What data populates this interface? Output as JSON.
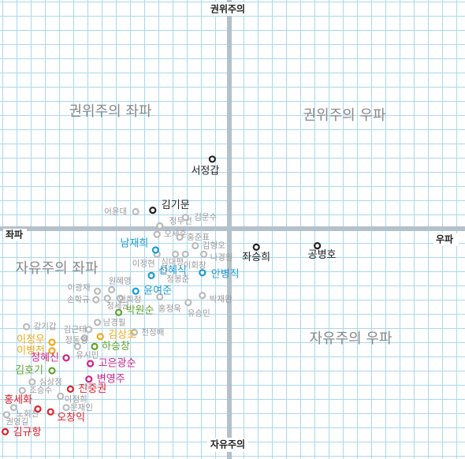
{
  "chart_data": {
    "type": "scatter",
    "axis_labels": {
      "top": "권위주의",
      "bottom": "자유주의",
      "left": "좌파",
      "right": "우파"
    },
    "quadrant_labels": [
      "권위주의 좌파",
      "권위주의 우파",
      "자유주의 좌파",
      "자유주의 우파"
    ],
    "xlim": [
      -16,
      16
    ],
    "ylim": [
      -16,
      16
    ],
    "points": [
      {
        "label": "서정갑",
        "x": -1.2,
        "y": 4.9,
        "color": "#222222"
      },
      {
        "label": "김기문",
        "x": -5.4,
        "y": 1.3,
        "color": "#222222"
      },
      {
        "label": "좌승희",
        "x": 1.9,
        "y": -1.3,
        "color": "#222222"
      },
      {
        "label": "공병호",
        "x": 6.2,
        "y": -1.2,
        "color": "#222222"
      },
      {
        "label": "어윤대",
        "x": -6.6,
        "y": 1.2,
        "color": "#bbbbbb"
      },
      {
        "label": "정두언",
        "x": -4.9,
        "y": 0.2,
        "color": "#bbbbbb"
      },
      {
        "label": "김문수",
        "x": -3.1,
        "y": 0.8,
        "color": "#bbbbbb"
      },
      {
        "label": "오세훈",
        "x": -5.1,
        "y": -0.4,
        "color": "#bbbbbb"
      },
      {
        "label": "홍준표",
        "x": -3.5,
        "y": -0.6,
        "color": "#bbbbbb"
      },
      {
        "label": "김형오",
        "x": -2.4,
        "y": -1.2,
        "color": "#bbbbbb"
      },
      {
        "label": "이정현",
        "x": -5.1,
        "y": -1.8,
        "color": "#bbbbbb"
      },
      {
        "label": "심대평",
        "x": -3.8,
        "y": -1.8,
        "color": "#bbbbbb"
      },
      {
        "label": "이회창",
        "x": -3.1,
        "y": -1.8,
        "color": "#bbbbbb"
      },
      {
        "label": "나경원",
        "x": -1.8,
        "y": -1.8,
        "color": "#bbbbbb"
      },
      {
        "label": "정몽준",
        "x": -4.6,
        "y": -2.9,
        "color": "#bbbbbb"
      },
      {
        "label": "원혜영",
        "x": -8.3,
        "y": -4.3,
        "color": "#bbbbbb"
      },
      {
        "label": "이광재",
        "x": -9.3,
        "y": -4.4,
        "color": "#bbbbbb"
      },
      {
        "label": "손학규",
        "x": -9.4,
        "y": -5.0,
        "color": "#bbbbbb"
      },
      {
        "label": "정세균",
        "x": -8.6,
        "y": -4.9,
        "color": "#bbbbbb"
      },
      {
        "label": "안희정",
        "x": -7.7,
        "y": -4.9,
        "color": "#bbbbbb"
      },
      {
        "label": "홍정욱",
        "x": -4.9,
        "y": -4.8,
        "color": "#bbbbbb"
      },
      {
        "label": "유승민",
        "x": -2.9,
        "y": -5.2,
        "color": "#bbbbbb"
      },
      {
        "label": "박재완",
        "x": -1.9,
        "y": -4.7,
        "color": "#bbbbbb"
      },
      {
        "label": "남경필",
        "x": -9.3,
        "y": -6.6,
        "color": "#bbbbbb"
      },
      {
        "label": "강기갑",
        "x": -14.3,
        "y": -6.9,
        "color": "#bbbbbb"
      },
      {
        "label": "김근태",
        "x": -9.9,
        "y": -7.1,
        "color": "#bbbbbb"
      },
      {
        "label": "천정배",
        "x": -6.7,
        "y": -7.3,
        "color": "#bbbbbb"
      },
      {
        "label": "정동영",
        "x": -10.2,
        "y": -7.7,
        "color": "#bbbbbb"
      },
      {
        "label": "유시민",
        "x": -10.7,
        "y": -8.3,
        "color": "#bbbbbb"
      },
      {
        "label": "심상정",
        "x": -13.9,
        "y": -10.8,
        "color": "#bbbbbb"
      },
      {
        "label": "조승수",
        "x": -14.6,
        "y": -11.4,
        "color": "#bbbbbb"
      },
      {
        "label": "이정희",
        "x": -11.9,
        "y": -11.8,
        "color": "#bbbbbb"
      },
      {
        "label": "문재인",
        "x": -11.5,
        "y": -12.6,
        "color": "#bbbbbb"
      },
      {
        "label": "노회찬",
        "x": -15.2,
        "y": -12.6,
        "color": "#bbbbbb"
      },
      {
        "label": "권영길",
        "x": -15.7,
        "y": -13.1,
        "color": "#bbbbbb"
      },
      {
        "label": "남재희",
        "x": -5.2,
        "y": -1.5,
        "color": "#1a9ad6"
      },
      {
        "label": "신혜식",
        "x": -5.5,
        "y": -3.3,
        "color": "#1a9ad6"
      },
      {
        "label": "안병직",
        "x": -1.9,
        "y": -3.1,
        "color": "#1a9ad6"
      },
      {
        "label": "윤여준",
        "x": -6.6,
        "y": -4.4,
        "color": "#1a9ad6"
      },
      {
        "label": "박원순",
        "x": -7.8,
        "y": -5.9,
        "color": "#5fa32a"
      },
      {
        "label": "하승창",
        "x": -9.5,
        "y": -8.3,
        "color": "#5fa32a"
      },
      {
        "label": "김호기",
        "x": -12.5,
        "y": -10.0,
        "color": "#5fa32a"
      },
      {
        "label": "김상조",
        "x": -9.1,
        "y": -7.6,
        "color": "#f0a818"
      },
      {
        "label": "이정우",
        "x": -12.5,
        "y": -8.0,
        "color": "#f0a818"
      },
      {
        "label": "이병천",
        "x": -12.5,
        "y": -8.6,
        "color": "#f0a818"
      },
      {
        "label": "정혜신",
        "x": -11.5,
        "y": -9.1,
        "color": "#cc2288"
      },
      {
        "label": "고은광순",
        "x": -9.8,
        "y": -9.5,
        "color": "#cc2288"
      },
      {
        "label": "변영주",
        "x": -9.9,
        "y": -10.6,
        "color": "#cc2288"
      },
      {
        "label": "진중권",
        "x": -11.2,
        "y": -11.3,
        "color": "#e0202a"
      },
      {
        "label": "홍세화",
        "x": -13.5,
        "y": -12.7,
        "color": "#e0202a"
      },
      {
        "label": "오창익",
        "x": -12.6,
        "y": -12.9,
        "color": "#e0202a"
      },
      {
        "label": "김규항",
        "x": -15.8,
        "y": -14.3,
        "color": "#e0202a"
      }
    ]
  }
}
